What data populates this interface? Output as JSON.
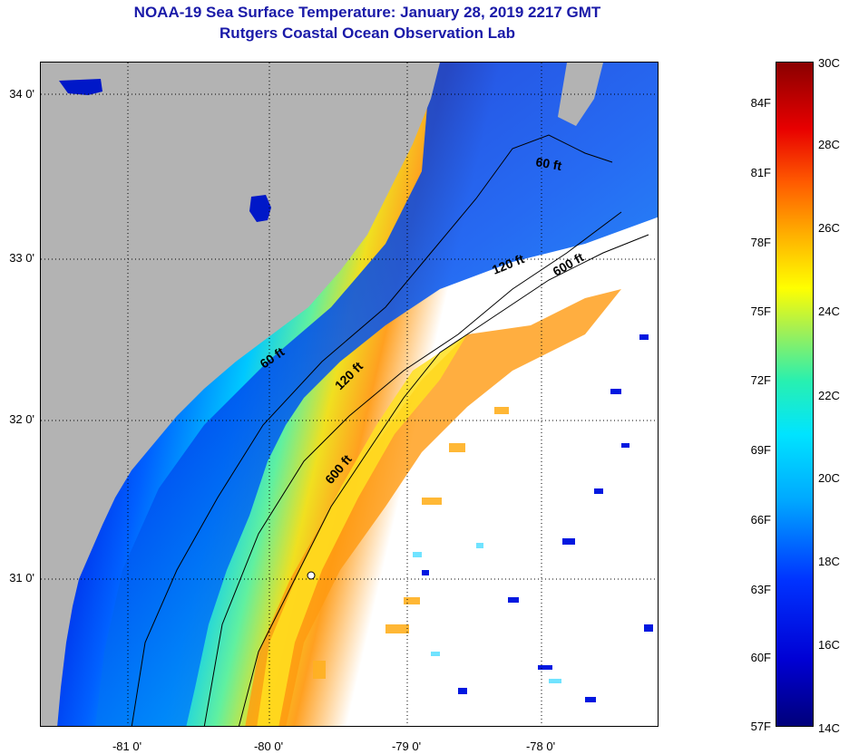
{
  "title": {
    "line1": "NOAA-19 Sea Surface Temperature:  January 28, 2019 2217 GMT",
    "line2": "Rutgers Coastal Ocean Observation Lab"
  },
  "map": {
    "land_color": "#b3b3b3",
    "latitude_labels": [
      "34 0'",
      "33 0'",
      "32 0'",
      "31 0'"
    ],
    "longitude_labels": [
      "-81 0'",
      "-80 0'",
      "-79 0'",
      "-78 0'"
    ],
    "contours": [
      {
        "label": "60 ft"
      },
      {
        "label": "60 ft"
      },
      {
        "label": "120 ft"
      },
      {
        "label": "120 ft"
      },
      {
        "label": "600 ft"
      },
      {
        "label": "600 ft"
      }
    ]
  },
  "colorbar": {
    "fahrenheit": [
      "84F",
      "81F",
      "78F",
      "75F",
      "72F",
      "69F",
      "66F",
      "63F",
      "60F",
      "57F"
    ],
    "celsius": [
      "30C",
      "28C",
      "26C",
      "24C",
      "22C",
      "20C",
      "18C",
      "16C",
      "14C"
    ],
    "colors": {
      "min": "#00007a",
      "mid": "#ffff00",
      "max": "#8a0000"
    }
  }
}
